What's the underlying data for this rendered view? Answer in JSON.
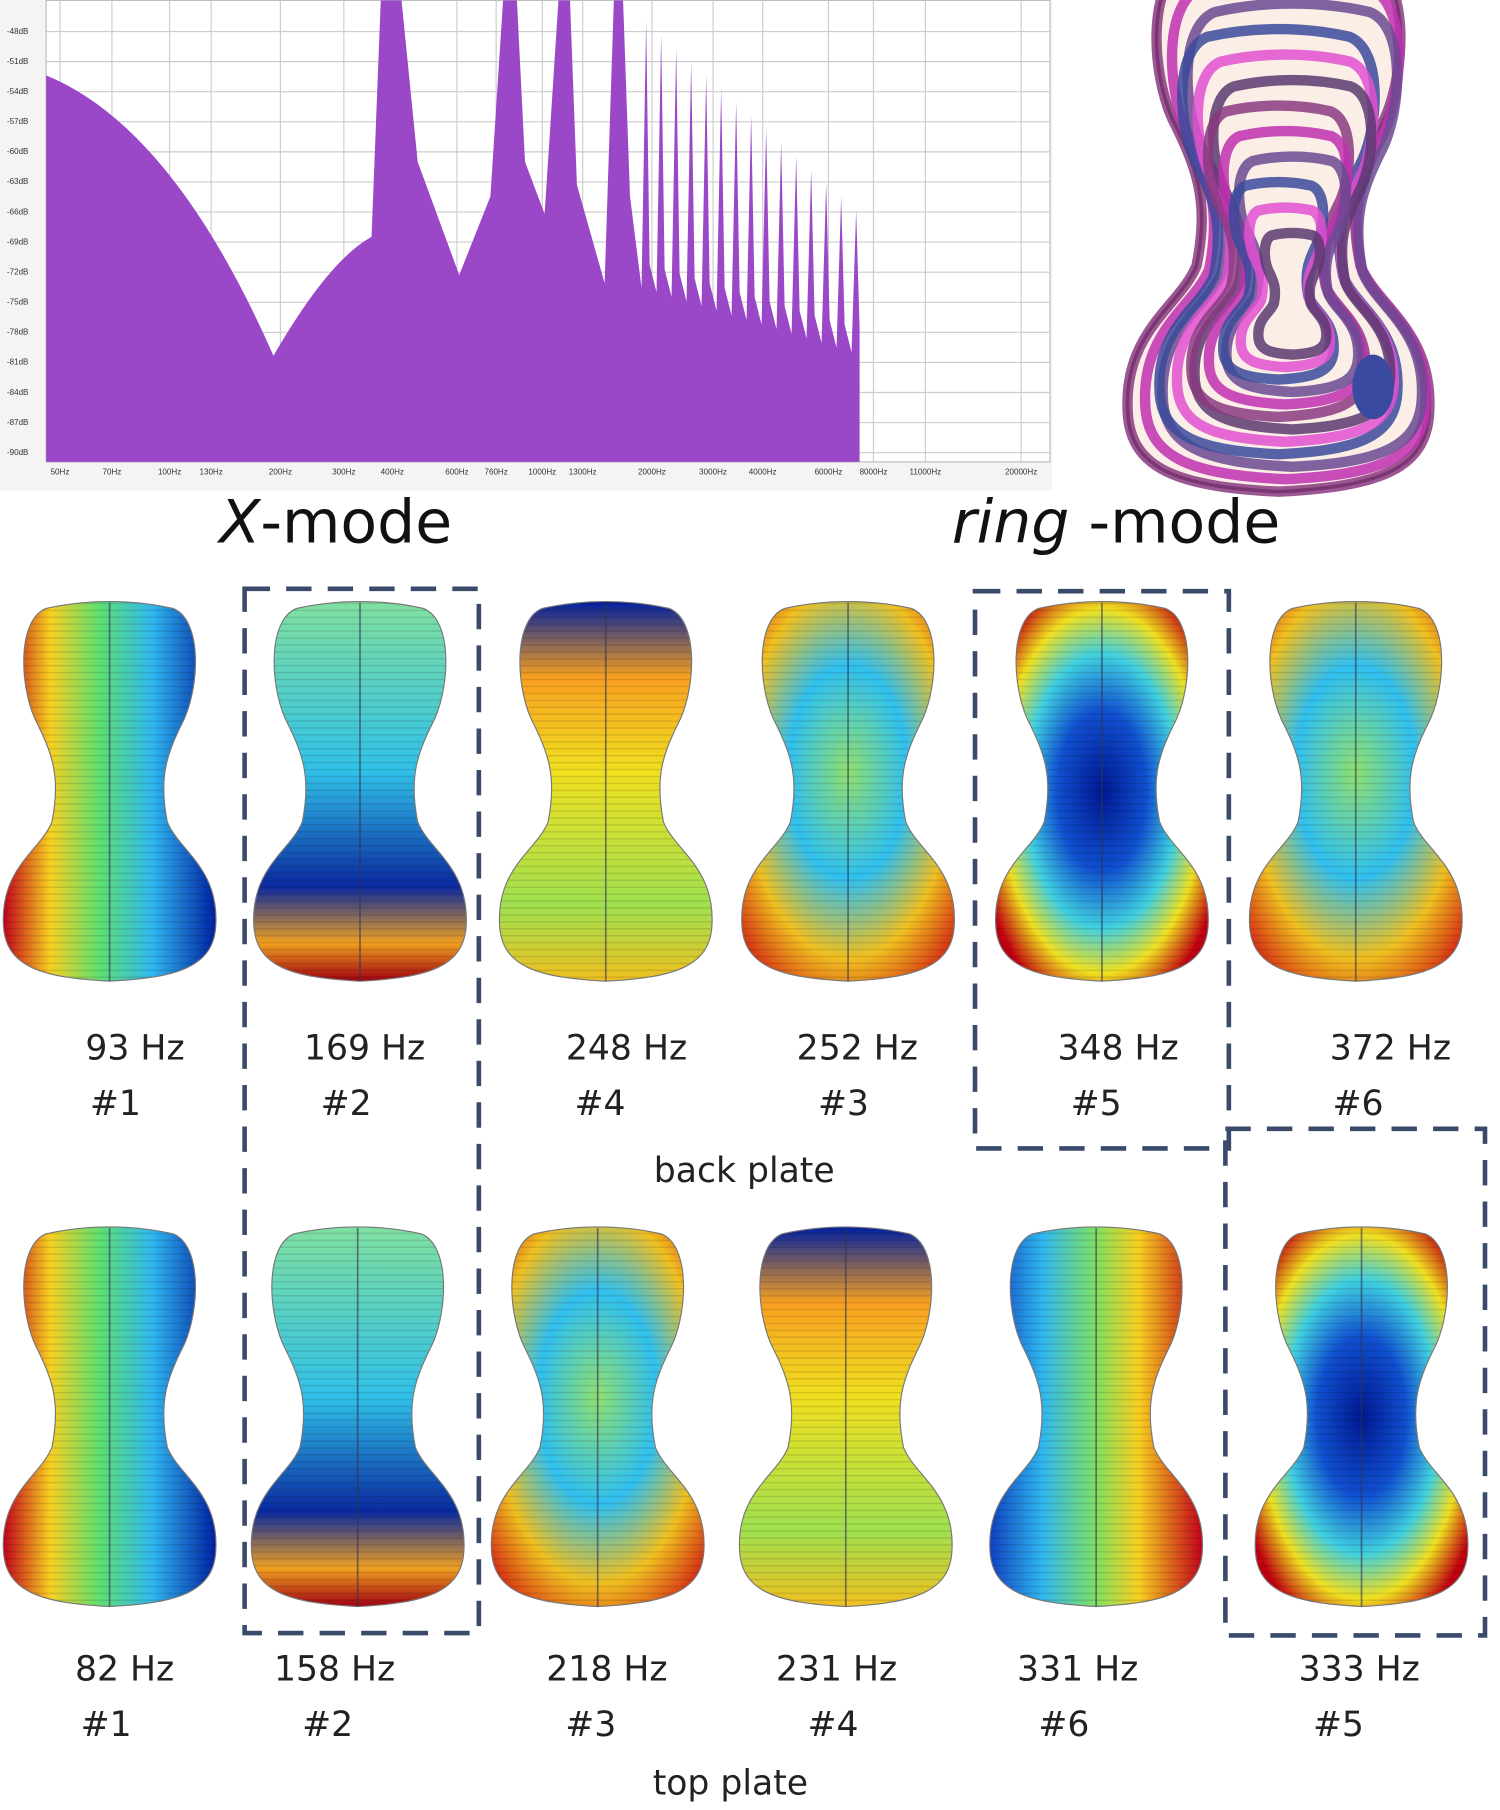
{
  "spectrum": {
    "y_labels": [
      "-48dB",
      "-51dB",
      "-54dB",
      "-57dB",
      "-60dB",
      "-63dB",
      "-66dB",
      "-69dB",
      "-72dB",
      "-75dB",
      "-78dB",
      "-81dB",
      "-84dB",
      "-87dB",
      "-90dB"
    ],
    "x_labels": [
      "50Hz",
      "70Hz",
      "100Hz",
      "130Hz",
      "200Hz",
      "300Hz",
      "400Hz",
      "600Hz",
      "760Hz",
      "1000Hz",
      "1300Hz",
      "2000Hz",
      "3000Hz",
      "4000Hz",
      "6000Hz",
      "8000Hz",
      "11000Hz",
      "20000Hz"
    ]
  },
  "headings": {
    "x_mode": {
      "italic": "X",
      "rest": "-mode"
    },
    "ring_mode": {
      "italic": "ring",
      "rest": " -mode"
    }
  },
  "back_plate": {
    "label": "back plate",
    "modes": [
      {
        "freq": "93 Hz",
        "num": "#1"
      },
      {
        "freq": "169 Hz",
        "num": "#2"
      },
      {
        "freq": "248 Hz",
        "num": "#4"
      },
      {
        "freq": "252 Hz",
        "num": "#3"
      },
      {
        "freq": "348 Hz",
        "num": "#5"
      },
      {
        "freq": "372 Hz",
        "num": "#6"
      }
    ]
  },
  "top_plate": {
    "label": "top plate",
    "modes": [
      {
        "freq": "82 Hz",
        "num": "#1"
      },
      {
        "freq": "158 Hz",
        "num": "#2"
      },
      {
        "freq": "218 Hz",
        "num": "#3"
      },
      {
        "freq": "231 Hz",
        "num": "#4"
      },
      {
        "freq": "331 Hz",
        "num": "#6"
      },
      {
        "freq": "333 Hz",
        "num": "#5"
      }
    ]
  }
}
